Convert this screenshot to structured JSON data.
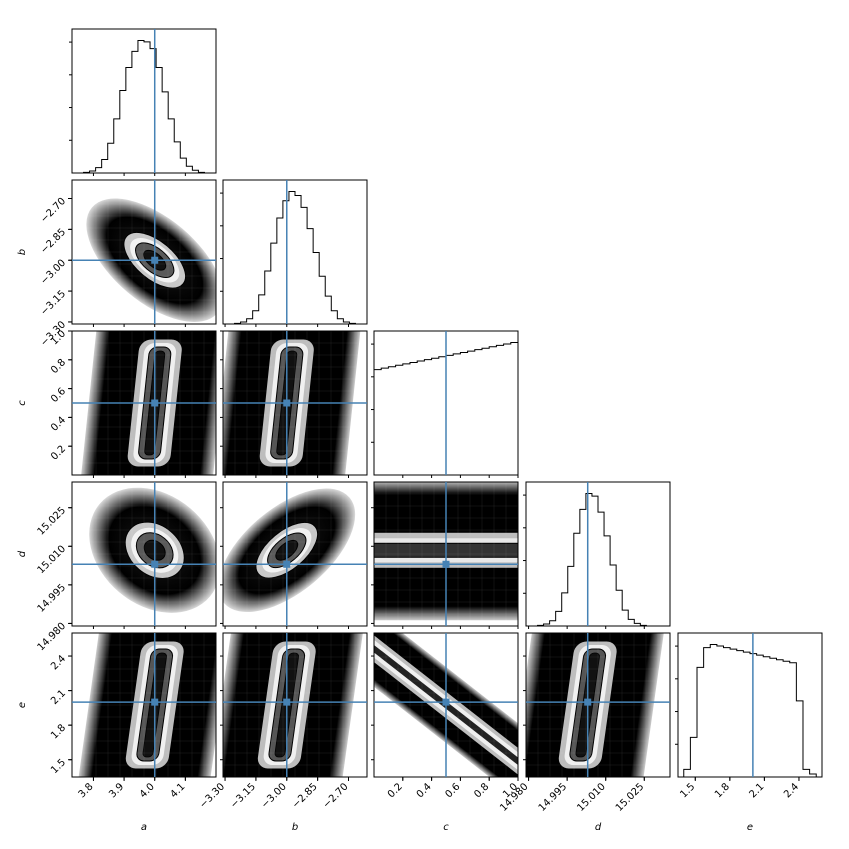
{
  "chart_data": {
    "type": "corner",
    "parameters": [
      "a",
      "b",
      "c",
      "d",
      "e"
    ],
    "labels": [
      "a",
      "b",
      "c",
      "d",
      "e"
    ],
    "truths": [
      4.0,
      -3.0,
      0.5,
      15.003,
      2.0
    ],
    "truth_color": "#4682b4",
    "ranges": [
      [
        3.73,
        4.2
      ],
      [
        -3.31,
        -2.61
      ],
      [
        0.0,
        1.0
      ],
      [
        14.979,
        15.035
      ],
      [
        1.35,
        2.6
      ]
    ],
    "ticks": [
      [
        "3.8",
        "3.9",
        "4.0",
        "4.1"
      ],
      [
        "−3.30",
        "−3.15",
        "−3.00",
        "−2.85",
        "−2.70"
      ],
      [
        "0.2",
        "0.4",
        "0.6",
        "0.8",
        "1.0"
      ],
      [
        "14.980",
        "14.995",
        "15.010",
        "15.025"
      ],
      [
        "1.5",
        "1.8",
        "2.1",
        "2.4"
      ]
    ],
    "tick_values": [
      [
        3.8,
        3.9,
        4.0,
        4.1
      ],
      [
        -3.3,
        -3.15,
        -3.0,
        -2.85,
        -2.7
      ],
      [
        0.2,
        0.4,
        0.6,
        0.8,
        1.0
      ],
      [
        14.98,
        14.995,
        15.01,
        15.025
      ],
      [
        1.5,
        1.8,
        2.1,
        2.4
      ]
    ],
    "y_ticks": {
      "b": [
        "−2.70",
        "−2.85",
        "−3.00",
        "−3.15",
        "−3.30"
      ],
      "c": [
        "1.0",
        "0.8",
        "0.6",
        "0.4",
        "0.2"
      ],
      "d": [
        "15.025",
        "15.010",
        "14.995",
        "14.980"
      ],
      "e": [
        "2.4",
        "2.1",
        "1.8",
        "1.5"
      ]
    },
    "histograms": [
      {
        "param": "a",
        "counts": [
          0.5,
          1.5,
          4,
          10,
          22,
          40,
          61,
          78,
          90,
          98,
          97,
          92,
          78,
          60,
          40,
          23,
          11,
          5,
          2,
          0.5
        ]
      },
      {
        "param": "b",
        "counts": [
          0.5,
          1.5,
          4,
          10,
          22,
          40,
          61,
          80,
          93,
          100,
          97,
          88,
          72,
          54,
          36,
          21,
          10,
          4,
          1.5,
          0.5
        ]
      },
      {
        "param": "c",
        "counts": [
          74,
          75,
          76,
          77,
          78,
          79,
          80,
          81,
          82,
          83,
          84,
          85,
          86,
          87,
          88,
          89,
          90,
          91,
          92,
          93
        ]
      },
      {
        "param": "d",
        "counts": [
          0.5,
          1.5,
          4,
          11,
          25,
          45,
          70,
          88,
          100,
          98,
          86,
          68,
          46,
          27,
          12,
          5,
          2,
          0.5,
          0,
          0
        ]
      },
      {
        "param": "e",
        "counts": [
          5,
          26,
          72,
          85,
          87,
          86,
          85,
          84,
          83,
          82,
          81,
          80,
          79,
          78,
          77,
          76,
          75,
          50,
          5,
          2
        ]
      }
    ],
    "joint": [
      {
        "x": "a",
        "y": "b",
        "shape": "ellipse",
        "correlation": -0.8
      },
      {
        "x": "a",
        "y": "c",
        "shape": "band",
        "correlation": 0.1
      },
      {
        "x": "b",
        "y": "c",
        "shape": "band",
        "correlation": 0.15
      },
      {
        "x": "a",
        "y": "d",
        "shape": "ellipse",
        "correlation": -0.35
      },
      {
        "x": "b",
        "y": "d",
        "shape": "ellipse",
        "correlation": 0.7
      },
      {
        "x": "c",
        "y": "d",
        "shape": "horizontal-band",
        "correlation": 0.0
      },
      {
        "x": "a",
        "y": "e",
        "shape": "band",
        "correlation": 0.2
      },
      {
        "x": "b",
        "y": "e",
        "shape": "band",
        "correlation": 0.15
      },
      {
        "x": "c",
        "y": "e",
        "shape": "diagonal-band",
        "correlation": -0.98
      },
      {
        "x": "d",
        "y": "e",
        "shape": "band",
        "correlation": 0.0
      }
    ]
  }
}
